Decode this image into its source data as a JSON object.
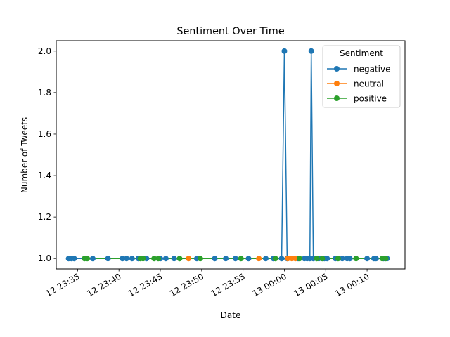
{
  "chart_data": {
    "type": "line",
    "title": "Sentiment Over Time",
    "xlabel": "Date",
    "ylabel": "Number of Tweets",
    "x_type": "time",
    "xlim": [
      "12 23:32:25",
      "13 00:14:35"
    ],
    "ylim": [
      0.95,
      2.05
    ],
    "x_ticks": [
      {
        "value": "12 23:35:00",
        "label": "12 23:35"
      },
      {
        "value": "12 23:40:00",
        "label": "12 23:40"
      },
      {
        "value": "12 23:45:00",
        "label": "12 23:45"
      },
      {
        "value": "12 23:50:00",
        "label": "12 23:50"
      },
      {
        "value": "12 23:55:00",
        "label": "12 23:55"
      },
      {
        "value": "13 00:00:00",
        "label": "13 00:00"
      },
      {
        "value": "13 00:05:00",
        "label": "13 00:05"
      },
      {
        "value": "13 00:10:00",
        "label": "13 00:10"
      }
    ],
    "y_ticks": [
      {
        "value": 1.0,
        "label": "1.0"
      },
      {
        "value": 1.2,
        "label": "1.2"
      },
      {
        "value": 1.4,
        "label": "1.4"
      },
      {
        "value": 1.6,
        "label": "1.6"
      },
      {
        "value": 1.8,
        "label": "1.8"
      },
      {
        "value": 2.0,
        "label": "2.0"
      }
    ],
    "grid": false,
    "legend": {
      "title": "Sentiment",
      "position": "top-right"
    },
    "series": [
      {
        "name": "negative",
        "color": "#1f77b4",
        "points": [
          [
            "12 23:33:55",
            1
          ],
          [
            "12 23:34:15",
            1
          ],
          [
            "12 23:34:35",
            1
          ],
          [
            "12 23:36:50",
            1
          ],
          [
            "12 23:38:40",
            1
          ],
          [
            "12 23:40:25",
            1
          ],
          [
            "12 23:40:55",
            1
          ],
          [
            "12 23:41:35",
            1
          ],
          [
            "12 23:42:20",
            1
          ],
          [
            "12 23:43:20",
            1
          ],
          [
            "12 23:45:00",
            1
          ],
          [
            "12 23:45:40",
            1
          ],
          [
            "12 23:46:40",
            1
          ],
          [
            "12 23:49:25",
            1
          ],
          [
            "12 23:51:35",
            1
          ],
          [
            "12 23:52:55",
            1
          ],
          [
            "12 23:54:05",
            1
          ],
          [
            "12 23:55:40",
            1
          ],
          [
            "12 23:57:45",
            1
          ],
          [
            "12 23:58:40",
            1
          ],
          [
            "12 23:59:40",
            1
          ],
          [
            "13 00:00:00",
            2
          ],
          [
            "13 00:00:20",
            1
          ],
          [
            "13 00:01:40",
            1
          ],
          [
            "13 00:02:25",
            1
          ],
          [
            "13 00:02:45",
            1
          ],
          [
            "13 00:03:05",
            1
          ],
          [
            "13 00:03:15",
            2
          ],
          [
            "13 00:03:30",
            1
          ],
          [
            "13 00:04:10",
            1
          ],
          [
            "13 00:04:50",
            1
          ],
          [
            "13 00:05:10",
            1
          ],
          [
            "13 00:06:10",
            1
          ],
          [
            "13 00:07:00",
            1
          ],
          [
            "13 00:07:35",
            1
          ],
          [
            "13 00:07:55",
            1
          ],
          [
            "13 00:10:00",
            1
          ],
          [
            "13 00:10:50",
            1
          ],
          [
            "13 00:11:05",
            1
          ],
          [
            "13 00:12:00",
            1
          ],
          [
            "13 00:12:25",
            1
          ]
        ]
      },
      {
        "name": "neutral",
        "color": "#ff7f0e",
        "points": [
          [
            "12 23:48:25",
            1
          ],
          [
            "12 23:56:55",
            1
          ],
          [
            "13 00:00:25",
            1
          ],
          [
            "13 00:00:55",
            1
          ],
          [
            "13 00:01:20",
            1
          ]
        ]
      },
      {
        "name": "positive",
        "color": "#2ca02c",
        "points": [
          [
            "12 23:35:50",
            1
          ],
          [
            "12 23:36:10",
            1
          ],
          [
            "12 23:42:35",
            1
          ],
          [
            "12 23:42:55",
            1
          ],
          [
            "12 23:44:15",
            1
          ],
          [
            "12 23:44:45",
            1
          ],
          [
            "12 23:47:20",
            1
          ],
          [
            "12 23:49:50",
            1
          ],
          [
            "12 23:54:45",
            1
          ],
          [
            "12 23:58:55",
            1
          ],
          [
            "13 00:01:50",
            1
          ],
          [
            "13 00:03:55",
            1
          ],
          [
            "13 00:04:35",
            1
          ],
          [
            "13 00:06:30",
            1
          ],
          [
            "13 00:08:40",
            1
          ],
          [
            "13 00:11:50",
            1
          ],
          [
            "13 00:12:15",
            1
          ]
        ]
      }
    ]
  }
}
